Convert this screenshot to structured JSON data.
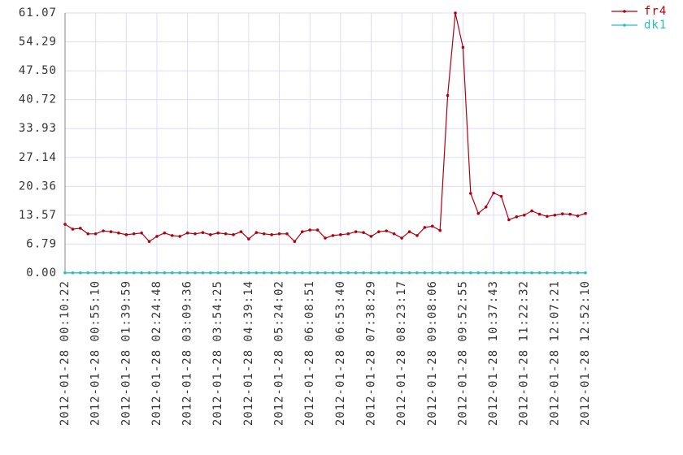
{
  "chart_data": {
    "type": "line",
    "categories": [
      "2012-01-28 00:10:22",
      null,
      null,
      null,
      "2012-01-28 00:55:10",
      null,
      null,
      null,
      "2012-01-28 01:39:59",
      null,
      null,
      null,
      "2012-01-28 02:24:48",
      null,
      null,
      null,
      "2012-01-28 03:09:36",
      null,
      null,
      null,
      "2012-01-28 03:54:25",
      null,
      null,
      null,
      "2012-01-28 04:39:14",
      null,
      null,
      null,
      "2012-01-28 05:24:02",
      null,
      null,
      null,
      "2012-01-28 06:08:51",
      null,
      null,
      null,
      "2012-01-28 06:53:40",
      null,
      null,
      null,
      "2012-01-28 07:38:29",
      null,
      null,
      null,
      "2012-01-28 08:23:17",
      null,
      null,
      null,
      "2012-01-28 09:08:06",
      null,
      null,
      null,
      "2012-01-28 09:52:55",
      null,
      null,
      null,
      "2012-01-28 10:37:43",
      null,
      null,
      null,
      "2012-01-28 11:22:32",
      null,
      null,
      null,
      "2012-01-28 12:07:21",
      null,
      null,
      null,
      "2012-01-28 12:52:10"
    ],
    "series": [
      {
        "name": "fr4",
        "color": "#b00010",
        "values": [
          11.45,
          10.3,
          10.5,
          9.2,
          9.2,
          9.9,
          9.7,
          9.4,
          9.0,
          9.2,
          9.4,
          7.4,
          8.6,
          9.4,
          8.8,
          8.6,
          9.4,
          9.2,
          9.5,
          9.0,
          9.4,
          9.2,
          9.0,
          9.7,
          8.0,
          9.5,
          9.2,
          9.0,
          9.2,
          9.2,
          7.4,
          9.7,
          10.1,
          10.1,
          8.2,
          8.8,
          9.0,
          9.2,
          9.7,
          9.5,
          8.6,
          9.7,
          9.9,
          9.2,
          8.2,
          9.7,
          8.8,
          10.7,
          11.0,
          10.0,
          41.7,
          61.07,
          53.0,
          18.7,
          14.0,
          15.5,
          18.8,
          18.0,
          12.5,
          13.2,
          13.6,
          14.6,
          13.8,
          13.3,
          13.6,
          13.9,
          13.8,
          13.4,
          14.0
        ]
      },
      {
        "name": "dk1",
        "color": "#20c0c0",
        "values": [
          0.05,
          0.05,
          0.05,
          0.05,
          0.05,
          0.05,
          0.05,
          0.05,
          0.05,
          0.05,
          0.05,
          0.05,
          0.05,
          0.05,
          0.05,
          0.05,
          0.05,
          0.05,
          0.05,
          0.05,
          0.05,
          0.05,
          0.05,
          0.05,
          0.05,
          0.05,
          0.05,
          0.05,
          0.05,
          0.05,
          0.05,
          0.05,
          0.05,
          0.05,
          0.05,
          0.05,
          0.05,
          0.05,
          0.05,
          0.05,
          0.05,
          0.05,
          0.05,
          0.05,
          0.05,
          0.05,
          0.05,
          0.05,
          0.05,
          0.05,
          0.05,
          0.05,
          0.05,
          0.05,
          0.05,
          0.05,
          0.05,
          0.05,
          0.05,
          0.05,
          0.05,
          0.05,
          0.05,
          0.05,
          0.05,
          0.05,
          0.05,
          0.05,
          0.05
        ]
      }
    ],
    "ylim": [
      0,
      61.07
    ],
    "yticks": [
      {
        "value": 0,
        "label": "0.00"
      },
      6.79,
      13.57,
      20.36,
      27.14,
      33.93,
      40.72,
      {
        "value": 47.5,
        "label": "47.50"
      },
      54.29,
      61.07
    ],
    "grid": true,
    "legend": "top-right"
  }
}
